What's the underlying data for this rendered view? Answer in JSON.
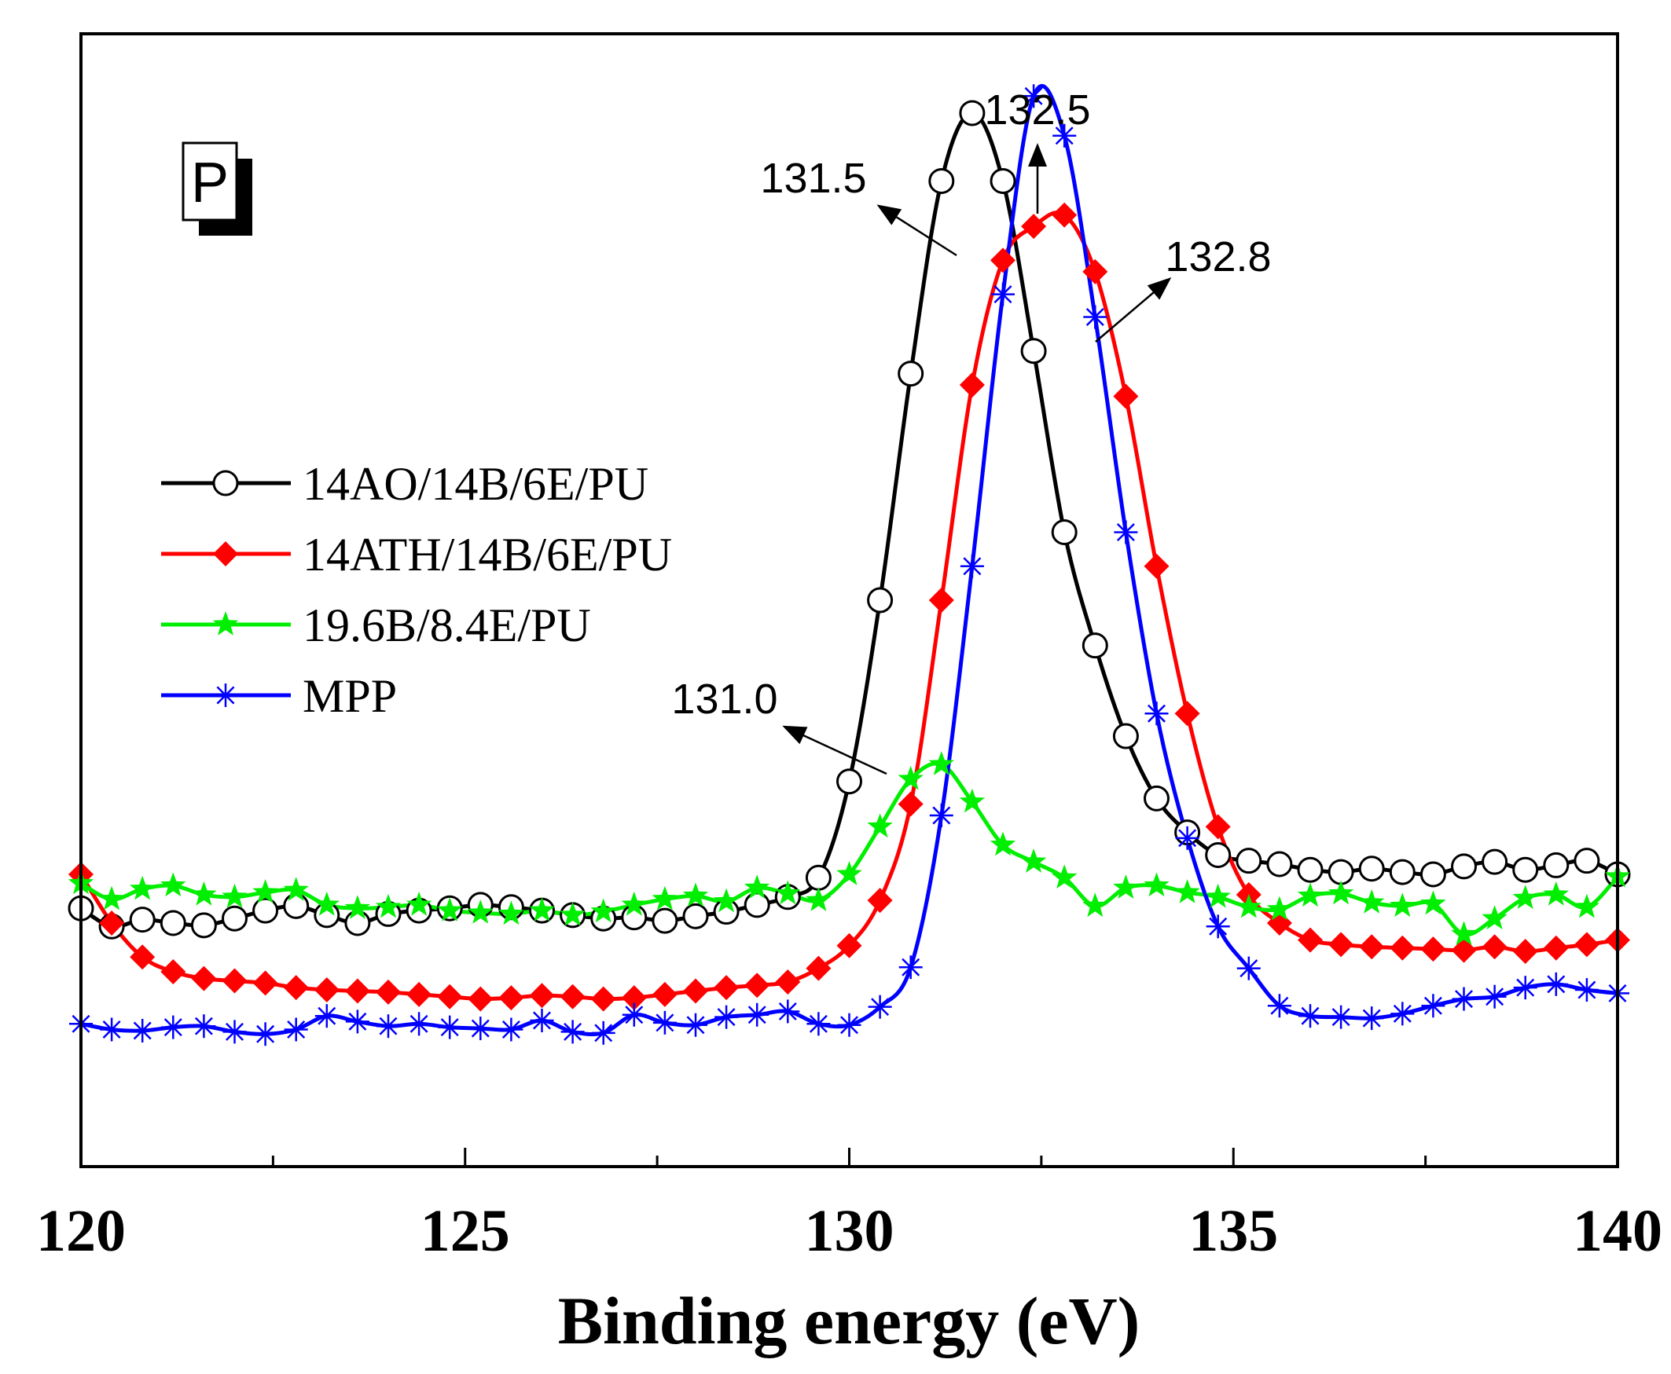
{
  "chart_data": {
    "type": "line",
    "panel_label": "P",
    "xlabel": "Binding energy (eV)",
    "ylabel": "",
    "xlim": [
      120,
      140
    ],
    "ylim": [
      0,
      1
    ],
    "x_ticks": [
      120,
      125,
      130,
      135,
      140
    ],
    "legend_position": "left",
    "series": [
      {
        "name": "14AO/14B/6E/PU",
        "color": "#000000",
        "marker": "open-circle",
        "x": [
          120.0,
          120.4,
          120.8,
          121.2,
          121.6,
          122.0,
          122.4,
          122.8,
          123.2,
          123.6,
          124.0,
          124.4,
          124.8,
          125.2,
          125.6,
          126.0,
          126.4,
          126.8,
          127.2,
          127.6,
          128.0,
          128.4,
          128.8,
          129.2,
          129.6,
          130.0,
          130.4,
          130.8,
          131.2,
          131.6,
          132.0,
          132.4,
          132.8,
          133.2,
          133.6,
          134.0,
          134.4,
          134.8,
          135.2,
          135.6,
          136.0,
          136.4,
          136.8,
          137.2,
          137.6,
          138.0,
          138.4,
          138.8,
          139.2,
          139.6,
          140.0
        ],
        "y": [
          0.228,
          0.212,
          0.218,
          0.215,
          0.213,
          0.219,
          0.226,
          0.23,
          0.222,
          0.215,
          0.223,
          0.226,
          0.228,
          0.231,
          0.229,
          0.226,
          0.222,
          0.219,
          0.22,
          0.217,
          0.221,
          0.225,
          0.231,
          0.238,
          0.255,
          0.34,
          0.5,
          0.7,
          0.87,
          0.93,
          0.87,
          0.72,
          0.56,
          0.46,
          0.38,
          0.325,
          0.295,
          0.275,
          0.27,
          0.267,
          0.262,
          0.26,
          0.263,
          0.26,
          0.258,
          0.265,
          0.269,
          0.262,
          0.266,
          0.27,
          0.258
        ]
      },
      {
        "name": "14ATH/14B/6E/PU",
        "color": "#ff0000",
        "marker": "filled-diamond",
        "x": [
          120.0,
          120.4,
          120.8,
          121.2,
          121.6,
          122.0,
          122.4,
          122.8,
          123.2,
          123.6,
          124.0,
          124.4,
          124.8,
          125.2,
          125.6,
          126.0,
          126.4,
          126.8,
          127.2,
          127.6,
          128.0,
          128.4,
          128.8,
          129.2,
          129.6,
          130.0,
          130.4,
          130.8,
          131.2,
          131.6,
          132.0,
          132.4,
          132.8,
          133.2,
          133.6,
          134.0,
          134.4,
          134.8,
          135.2,
          135.6,
          136.0,
          136.4,
          136.8,
          137.2,
          137.6,
          138.0,
          138.4,
          138.8,
          139.2,
          139.6,
          140.0
        ],
        "y": [
          0.258,
          0.215,
          0.185,
          0.172,
          0.166,
          0.164,
          0.162,
          0.158,
          0.156,
          0.155,
          0.154,
          0.152,
          0.15,
          0.148,
          0.149,
          0.151,
          0.15,
          0.148,
          0.149,
          0.152,
          0.155,
          0.158,
          0.16,
          0.163,
          0.175,
          0.195,
          0.235,
          0.32,
          0.5,
          0.69,
          0.8,
          0.83,
          0.84,
          0.79,
          0.68,
          0.53,
          0.4,
          0.3,
          0.24,
          0.215,
          0.2,
          0.196,
          0.194,
          0.193,
          0.192,
          0.191,
          0.194,
          0.19,
          0.193,
          0.196,
          0.2
        ]
      },
      {
        "name": "19.6B/8.4E/PU",
        "color": "#00ee00",
        "marker": "filled-star",
        "x": [
          120.0,
          120.4,
          120.8,
          121.2,
          121.6,
          122.0,
          122.4,
          122.8,
          123.2,
          123.6,
          124.0,
          124.4,
          124.8,
          125.2,
          125.6,
          126.0,
          126.4,
          126.8,
          127.2,
          127.6,
          128.0,
          128.4,
          128.8,
          129.2,
          129.6,
          130.0,
          130.4,
          130.8,
          131.2,
          131.6,
          132.0,
          132.4,
          132.8,
          133.2,
          133.6,
          134.0,
          134.4,
          134.8,
          135.2,
          135.6,
          136.0,
          136.4,
          136.8,
          137.2,
          137.6,
          138.0,
          138.4,
          138.8,
          139.2,
          139.6,
          140.0
        ],
        "y": [
          0.25,
          0.236,
          0.245,
          0.248,
          0.24,
          0.238,
          0.242,
          0.244,
          0.231,
          0.228,
          0.229,
          0.231,
          0.226,
          0.224,
          0.223,
          0.226,
          0.222,
          0.225,
          0.231,
          0.236,
          0.239,
          0.234,
          0.246,
          0.241,
          0.235,
          0.258,
          0.3,
          0.342,
          0.355,
          0.322,
          0.284,
          0.269,
          0.255,
          0.23,
          0.246,
          0.248,
          0.242,
          0.238,
          0.229,
          0.227,
          0.239,
          0.241,
          0.233,
          0.23,
          0.232,
          0.205,
          0.219,
          0.237,
          0.24,
          0.229,
          0.256
        ]
      },
      {
        "name": "MPP",
        "color": "#0000ff",
        "marker": "asterisk",
        "x": [
          120.0,
          120.4,
          120.8,
          121.2,
          121.6,
          122.0,
          122.4,
          122.8,
          123.2,
          123.6,
          124.0,
          124.4,
          124.8,
          125.2,
          125.6,
          126.0,
          126.4,
          126.8,
          127.2,
          127.6,
          128.0,
          128.4,
          128.8,
          129.2,
          129.6,
          130.0,
          130.4,
          130.8,
          131.2,
          131.6,
          132.0,
          132.4,
          132.8,
          133.2,
          133.6,
          134.0,
          134.4,
          134.8,
          135.2,
          135.6,
          136.0,
          136.4,
          136.8,
          137.2,
          137.6,
          138.0,
          138.4,
          138.8,
          139.2,
          139.6,
          140.0
        ],
        "y": [
          0.126,
          0.121,
          0.12,
          0.123,
          0.124,
          0.119,
          0.117,
          0.121,
          0.133,
          0.128,
          0.124,
          0.126,
          0.123,
          0.122,
          0.121,
          0.129,
          0.119,
          0.118,
          0.134,
          0.127,
          0.125,
          0.132,
          0.134,
          0.137,
          0.126,
          0.125,
          0.141,
          0.176,
          0.31,
          0.53,
          0.77,
          0.945,
          0.91,
          0.75,
          0.56,
          0.4,
          0.29,
          0.212,
          0.175,
          0.142,
          0.133,
          0.132,
          0.131,
          0.135,
          0.142,
          0.148,
          0.15,
          0.158,
          0.161,
          0.156,
          0.153
        ]
      }
    ],
    "annotations": [
      {
        "text": "131.5",
        "peak_x": 131.5,
        "peak_y": 0.93
      },
      {
        "text": "132.5",
        "peak_x": 132.4,
        "peak_y": 0.945
      },
      {
        "text": "132.8",
        "peak_x": 132.8,
        "peak_y": 0.84
      },
      {
        "text": "131.0",
        "peak_x": 130.8,
        "peak_y": 0.355
      }
    ]
  }
}
